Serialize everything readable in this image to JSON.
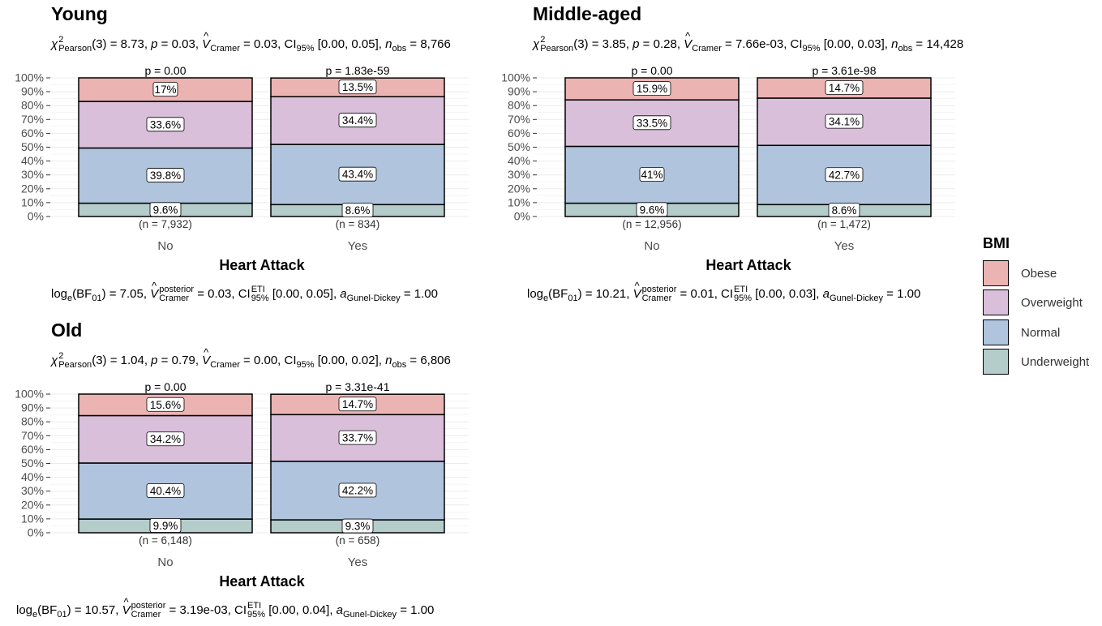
{
  "panels": [
    {
      "title": "Young",
      "stat": {
        "df": "3",
        "chi": "8.73",
        "p": "0.03",
        "v": "0.03",
        "ci": "[0.00, 0.05]",
        "n": "8,766"
      },
      "bayes": {
        "bf": "7.05",
        "v": "0.03",
        "ci": "[0.00, 0.05]",
        "a": "1.00"
      }
    },
    {
      "title": "Middle-aged",
      "stat": {
        "df": "3",
        "chi": "3.85",
        "p": "0.28",
        "v": "7.66e-03",
        "ci": "[0.00, 0.03]",
        "n": "14,428"
      },
      "bayes": {
        "bf": "10.21",
        "v": "0.01",
        "ci": "[0.00, 0.03]",
        "a": "1.00"
      }
    },
    {
      "title": "Old",
      "stat": {
        "df": "3",
        "chi": "1.04",
        "p": "0.79",
        "v": "0.00",
        "ci": "[0.00, 0.02]",
        "n": "6,806"
      },
      "bayes": {
        "bf": "10.57",
        "v": "3.19e-03",
        "ci": "[0.00, 0.04]",
        "a": "1.00"
      }
    }
  ],
  "labels": {
    "chi": "χ",
    "pearson": "Pearson",
    "p": "p",
    "v": "V",
    "cramer": "Cramer",
    "ci": "CI",
    "ci95": "95%",
    "n": "n",
    "obs": "obs",
    "loge": "log",
    "e": "e",
    "bf": "BF",
    "bf01": "01",
    "posterior": "posterior",
    "eti": "ETI",
    "a": "a",
    "gd": "Gunel-Dickey"
  },
  "legend": {
    "title": "BMI",
    "items": [
      {
        "label": "Obese",
        "color": "#ECB3B3"
      },
      {
        "label": "Overweight",
        "color": "#D9BFD9"
      },
      {
        "label": "Normal",
        "color": "#B0C4DE"
      },
      {
        "label": "Underweight",
        "color": "#B4CDCB"
      }
    ]
  },
  "chart_data": [
    {
      "type": "bar",
      "stacked": true,
      "title": "Young",
      "xlabel": "Heart Attack",
      "ylabel": "",
      "ylim": [
        0,
        100
      ],
      "yticks": [
        "0%",
        "10%",
        "20%",
        "30%",
        "40%",
        "50%",
        "60%",
        "70%",
        "80%",
        "90%",
        "100%"
      ],
      "categories": [
        "No",
        "Yes"
      ],
      "p_labels": [
        "p = 0.00",
        "p = 1.83e-59"
      ],
      "n_labels": [
        "(n = 7,932)",
        "(n = 834)"
      ],
      "series": [
        {
          "name": "Underweight",
          "values": [
            9.6,
            8.6
          ],
          "labels": [
            "9.6%",
            "8.6%"
          ],
          "color": "#B4CDCB"
        },
        {
          "name": "Normal",
          "values": [
            39.8,
            43.4
          ],
          "labels": [
            "39.8%",
            "43.4%"
          ],
          "color": "#B0C4DE"
        },
        {
          "name": "Overweight",
          "values": [
            33.6,
            34.4
          ],
          "labels": [
            "33.6%",
            "34.4%"
          ],
          "color": "#D9BFD9"
        },
        {
          "name": "Obese",
          "values": [
            17.0,
            13.5
          ],
          "labels": [
            "17%",
            "13.5%"
          ],
          "color": "#ECB3B3"
        }
      ]
    },
    {
      "type": "bar",
      "stacked": true,
      "title": "Middle-aged",
      "xlabel": "Heart Attack",
      "ylabel": "",
      "ylim": [
        0,
        100
      ],
      "yticks": [
        "0%",
        "10%",
        "20%",
        "30%",
        "40%",
        "50%",
        "60%",
        "70%",
        "80%",
        "90%",
        "100%"
      ],
      "categories": [
        "No",
        "Yes"
      ],
      "p_labels": [
        "p = 0.00",
        "p = 3.61e-98"
      ],
      "n_labels": [
        "(n = 12,956)",
        "(n = 1,472)"
      ],
      "series": [
        {
          "name": "Underweight",
          "values": [
            9.6,
            8.6
          ],
          "labels": [
            "9.6%",
            "8.6%"
          ],
          "color": "#B4CDCB"
        },
        {
          "name": "Normal",
          "values": [
            41.0,
            42.7
          ],
          "labels": [
            "41%",
            "42.7%"
          ],
          "color": "#B0C4DE"
        },
        {
          "name": "Overweight",
          "values": [
            33.5,
            34.1
          ],
          "labels": [
            "33.5%",
            "34.1%"
          ],
          "color": "#D9BFD9"
        },
        {
          "name": "Obese",
          "values": [
            15.9,
            14.7
          ],
          "labels": [
            "15.9%",
            "14.7%"
          ],
          "color": "#ECB3B3"
        }
      ]
    },
    {
      "type": "bar",
      "stacked": true,
      "title": "Old",
      "xlabel": "Heart Attack",
      "ylabel": "",
      "ylim": [
        0,
        100
      ],
      "yticks": [
        "0%",
        "10%",
        "20%",
        "30%",
        "40%",
        "50%",
        "60%",
        "70%",
        "80%",
        "90%",
        "100%"
      ],
      "categories": [
        "No",
        "Yes"
      ],
      "p_labels": [
        "p = 0.00",
        "p = 3.31e-41"
      ],
      "n_labels": [
        "(n = 6,148)",
        "(n = 658)"
      ],
      "series": [
        {
          "name": "Underweight",
          "values": [
            9.9,
            9.3
          ],
          "labels": [
            "9.9%",
            "9.3%"
          ],
          "color": "#B4CDCB"
        },
        {
          "name": "Normal",
          "values": [
            40.4,
            42.2
          ],
          "labels": [
            "40.4%",
            "42.2%"
          ],
          "color": "#B0C4DE"
        },
        {
          "name": "Overweight",
          "values": [
            34.2,
            33.7
          ],
          "labels": [
            "34.2%",
            "33.7%"
          ],
          "color": "#D9BFD9"
        },
        {
          "name": "Obese",
          "values": [
            15.6,
            14.7
          ],
          "labels": [
            "15.6%",
            "14.7%"
          ],
          "color": "#ECB3B3"
        }
      ]
    }
  ]
}
